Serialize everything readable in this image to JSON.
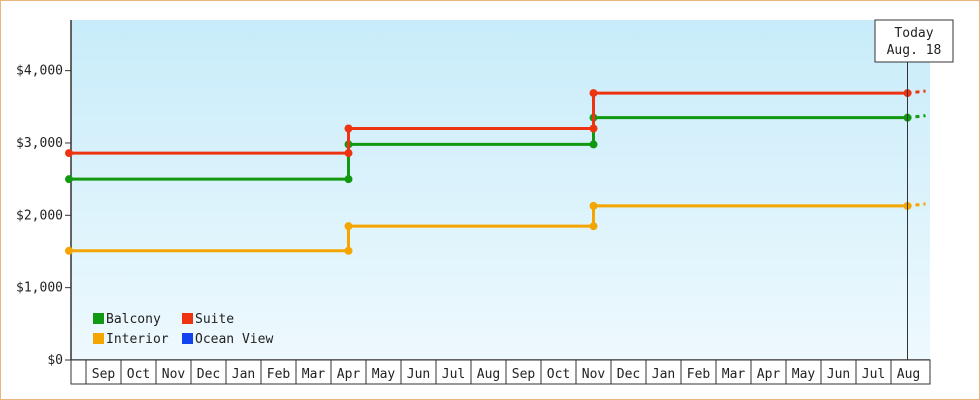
{
  "chart_data": {
    "type": "line",
    "step": true,
    "x_months": [
      "Sep",
      "Oct",
      "Nov",
      "Dec",
      "Jan",
      "Feb",
      "Mar",
      "Apr",
      "May",
      "Jun",
      "Jul",
      "Aug",
      "Sep",
      "Oct",
      "Nov",
      "Dec",
      "Jan",
      "Feb",
      "Mar",
      "Apr",
      "May",
      "Jun",
      "Jul",
      "Aug"
    ],
    "ylim": [
      0,
      4700
    ],
    "y_ticks": [
      {
        "value": 0,
        "label": "$0"
      },
      {
        "value": 1000,
        "label": "$1,000"
      },
      {
        "value": 2000,
        "label": "$2,000"
      },
      {
        "value": 3000,
        "label": "$3,000"
      },
      {
        "value": 4000,
        "label": "$4,000"
      }
    ],
    "today": {
      "line1": "Today",
      "line2": "Aug. 18",
      "x_month_index": 23.5
    },
    "series": [
      {
        "name": "Balcony",
        "color": "#119911",
        "points": [
          {
            "x": 0,
            "y": 2500
          },
          {
            "x": 7.5,
            "y": 2500
          },
          {
            "x": 7.5,
            "y": 2980
          },
          {
            "x": 14.5,
            "y": 2980
          },
          {
            "x": 14.5,
            "y": 3350
          },
          {
            "x": 24,
            "y": 3350
          }
        ]
      },
      {
        "name": "Suite",
        "color": "#ee3311",
        "points": [
          {
            "x": 0,
            "y": 2860
          },
          {
            "x": 7.5,
            "y": 2860
          },
          {
            "x": 7.5,
            "y": 3200
          },
          {
            "x": 14.5,
            "y": 3200
          },
          {
            "x": 14.5,
            "y": 3690
          },
          {
            "x": 24,
            "y": 3690
          }
        ]
      },
      {
        "name": "Interior",
        "color": "#f5a500",
        "points": [
          {
            "x": 0,
            "y": 1510
          },
          {
            "x": 7.5,
            "y": 1510
          },
          {
            "x": 7.5,
            "y": 1850
          },
          {
            "x": 14.5,
            "y": 1850
          },
          {
            "x": 14.5,
            "y": 2130
          },
          {
            "x": 24,
            "y": 2130
          }
        ]
      },
      {
        "name": "Ocean View",
        "color": "#1144ee",
        "points": []
      }
    ]
  }
}
